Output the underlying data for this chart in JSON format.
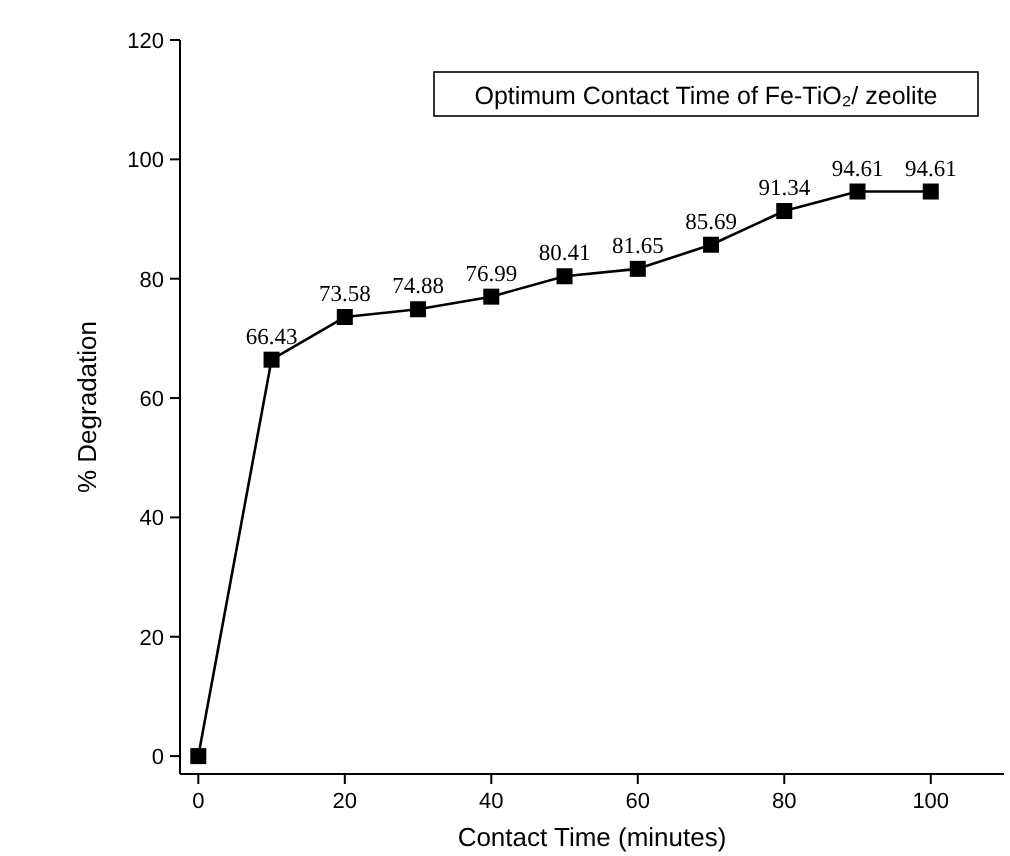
{
  "chart_data": {
    "type": "line",
    "title": "Optimum Contact Time of Fe-TiO₂/ zeolite",
    "xlabel": "Contact Time (minutes)",
    "ylabel": "% Degradation",
    "x": [
      0,
      10,
      20,
      30,
      40,
      50,
      60,
      70,
      80,
      90,
      100
    ],
    "series": [
      {
        "color": "#000000",
        "values": [
          0,
          66.43,
          73.58,
          74.88,
          76.99,
          80.41,
          81.65,
          85.69,
          91.34,
          94.61,
          94.61
        ],
        "value_labels": [
          null,
          "66.43",
          "73.58",
          "74.88",
          "76.99",
          "80.41",
          "81.65",
          "85.69",
          "91.34",
          "94.61",
          "94.61"
        ]
      }
    ],
    "xlim": [
      -2.5,
      110
    ],
    "ylim": [
      -3,
      120
    ],
    "xticks": [
      0,
      20,
      40,
      60,
      80,
      100
    ],
    "yticks": [
      0,
      20,
      40,
      60,
      80,
      100,
      120
    ],
    "marker": "square",
    "line_style": "solid",
    "grid": false
  }
}
